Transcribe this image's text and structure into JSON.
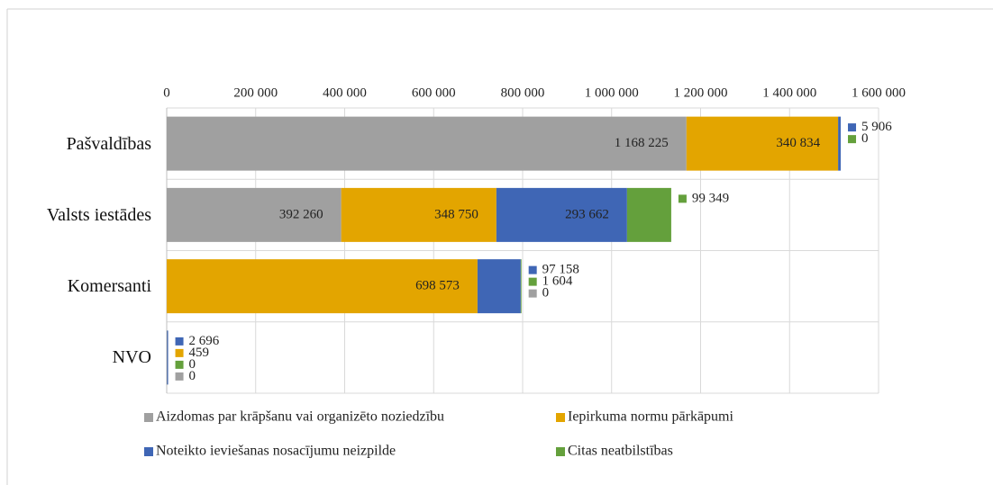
{
  "chart_data": {
    "type": "stacked-bar-horizontal",
    "categories": [
      "Pašvaldības",
      "Valsts iestādes",
      "Komersanti",
      "NVO"
    ],
    "series": [
      {
        "name": "Aizdomas par krāpšanu vai organizēto noziedzību",
        "color": "#a0a0a0",
        "values": [
          1168225,
          392260,
          0,
          0
        ],
        "value_labels": [
          "1 168 225",
          "392 260",
          "0",
          "0"
        ]
      },
      {
        "name": "Iepirkuma normu pārkāpumi",
        "color": "#e3a500",
        "values": [
          340834,
          348750,
          698573,
          459
        ],
        "value_labels": [
          "340 834",
          "348 750",
          "698 573",
          "459"
        ]
      },
      {
        "name": "Noteikto ieviešanas nosacījumu neizpilde",
        "color": "#3f66b5",
        "values": [
          5906,
          293662,
          97158,
          2696
        ],
        "value_labels": [
          "5 906",
          "293 662",
          "97 158",
          "2 696"
        ]
      },
      {
        "name": "Citas neatbilstības",
        "color": "#64a03c",
        "values": [
          0,
          99349,
          1604,
          0
        ],
        "value_labels": [
          "0",
          "99 349",
          "1 604",
          "0"
        ]
      }
    ],
    "xlim": [
      0,
      1600000
    ],
    "xticks": [
      0,
      {
        "value": 200000,
        "label": "200 000"
      },
      {
        "value": 400000,
        "label": "400 000"
      },
      {
        "value": 600000,
        "label": "600 000"
      },
      {
        "value": 800000,
        "label": "800 000"
      },
      {
        "value": 1000000,
        "label": "1 000 000"
      },
      {
        "value": 1200000,
        "label": "1 200 000"
      },
      {
        "value": 1400000,
        "label": "1 400 000"
      },
      {
        "value": 1600000,
        "label": "1 600 000"
      }
    ],
    "grid": true,
    "legend": "bottom"
  }
}
